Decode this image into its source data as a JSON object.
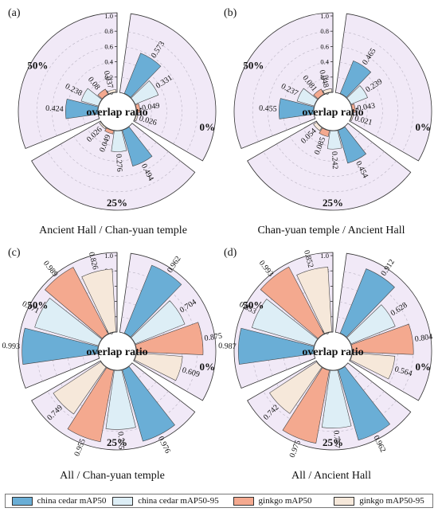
{
  "legend": [
    {
      "name": "china cedar mAP50",
      "color": "#6aaed6"
    },
    {
      "name": "china cedar mAP50-95",
      "color": "#ddeef6"
    },
    {
      "name": "ginkgo mAP50",
      "color": "#f4a98f"
    },
    {
      "name": "ginkgo mAP50-95",
      "color": "#f6e8da"
    }
  ],
  "background_color": "#f1e9f7",
  "chart_data": [
    {
      "type": "radial-bar",
      "panel_label": "(a)",
      "title": "Ancient Hall / Chan-yuan temple",
      "center_label": "overlap ratio",
      "rlim": [
        0,
        1.0
      ],
      "r_ticks": [
        "0.0",
        "0.2",
        "0.4",
        "0.6",
        "0.8",
        "1.0"
      ],
      "groups": [
        "0%",
        "25%",
        "50%"
      ],
      "series": [
        {
          "name": "china cedar mAP50",
          "values": [
            0.573,
            0.494,
            0.424
          ]
        },
        {
          "name": "china cedar mAP50-95",
          "values": [
            0.331,
            0.276,
            0.238
          ]
        },
        {
          "name": "ginkgo mAP50",
          "values": [
            0.049,
            0.049,
            0.08
          ]
        },
        {
          "name": "ginkgo mAP50-95",
          "values": [
            0.026,
            0.026,
            0.037
          ]
        }
      ]
    },
    {
      "type": "radial-bar",
      "panel_label": "(b)",
      "title": "Chan-yuan temple / Ancient Hall",
      "center_label": "overlap ratio",
      "rlim": [
        0,
        1.0
      ],
      "r_ticks": [
        "0.0",
        "0.2",
        "0.4",
        "0.6",
        "0.8",
        "1.0"
      ],
      "groups": [
        "0%",
        "25%",
        "50%"
      ],
      "series": [
        {
          "name": "china cedar mAP50",
          "values": [
            0.465,
            0.454,
            0.455
          ]
        },
        {
          "name": "china cedar mAP50-95",
          "values": [
            0.239,
            0.242,
            0.237
          ]
        },
        {
          "name": "ginkgo mAP50",
          "values": [
            0.043,
            0.085,
            0.081
          ]
        },
        {
          "name": "ginkgo mAP50-95",
          "values": [
            0.021,
            0.054,
            0.048
          ]
        }
      ]
    },
    {
      "type": "radial-bar",
      "panel_label": "(c)",
      "title": "All / Chan-yuan temple",
      "center_label": "overlap ratio",
      "rlim": [
        0,
        1.0
      ],
      "r_ticks": [
        "0.0",
        "0.2",
        "0.4",
        "0.6",
        "0.8",
        "1.0"
      ],
      "groups": [
        "0%",
        "25%",
        "50%"
      ],
      "series": [
        {
          "name": "china cedar mAP50",
          "values": [
            0.962,
            0.976,
            0.993
          ]
        },
        {
          "name": "china cedar mAP50-95",
          "values": [
            0.704,
            0.775,
            0.871
          ]
        },
        {
          "name": "ginkgo mAP50",
          "values": [
            0.875,
            0.955,
            0.989
          ]
        },
        {
          "name": "ginkgo mAP50-95",
          "values": [
            0.609,
            0.749,
            0.826
          ]
        }
      ]
    },
    {
      "type": "radial-bar",
      "panel_label": "(d)",
      "title": "All / Ancient Hall",
      "center_label": "overlap ratio",
      "rlim": [
        0,
        1.0
      ],
      "r_ticks": [
        "0.0",
        "0.2",
        "0.4",
        "0.6",
        "0.8",
        "1.0"
      ],
      "groups": [
        "0%",
        "25%",
        "50%"
      ],
      "series": [
        {
          "name": "china cedar mAP50",
          "values": [
            0.912,
            0.962,
            0.987
          ]
        },
        {
          "name": "china cedar mAP50-95",
          "values": [
            0.628,
            0.757,
            0.853
          ]
        },
        {
          "name": "ginkgo mAP50",
          "values": [
            0.804,
            0.975,
            0.993
          ]
        },
        {
          "name": "ginkgo mAP50-95",
          "values": [
            0.564,
            0.742,
            0.852
          ]
        }
      ]
    }
  ]
}
